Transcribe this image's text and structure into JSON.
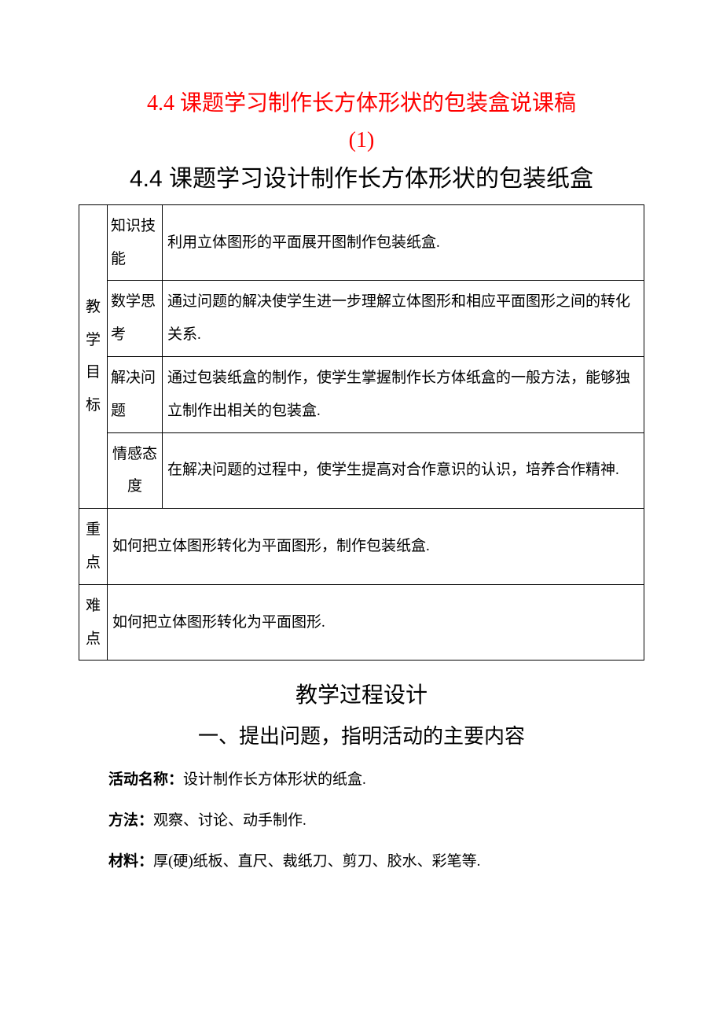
{
  "title_red_line1": "4.4 课题学习制作长方体形状的包装盒说课稿",
  "title_red_line2": "(1)",
  "subtitle": "4.4 课题学习设计制作长方体形状的包装纸盒",
  "table": {
    "goal_header": "教学目标",
    "rows": [
      {
        "label": "知识技能",
        "content": "利用立体图形的平面展开图制作包装纸盒."
      },
      {
        "label": "数学思考",
        "content": "通过问题的解决使学生进一步理解立体图形和相应平面图形之间的转化关系."
      },
      {
        "label": "解决问题",
        "content": "通过包装纸盒的制作，使学生掌握制作长方体纸盒的一般方法，能够独立制作出相关的包装盒."
      },
      {
        "label": "情感态度",
        "content": "在解决问题的过程中，使学生提高对合作意识的认识，培养合作精神."
      }
    ],
    "keypoint_label": "重点",
    "keypoint_content": "如何把立体图形转化为平面图形，制作包装纸盒.",
    "difficulty_label": "难点",
    "difficulty_content": "如何把立体图形转化为平面图形."
  },
  "process_title": "教学过程设计",
  "step1_title": "一、提出问题，指明活动的主要内容",
  "lines": [
    {
      "bold": "活动名称：",
      "text": "设计制作长方体形状的纸盒."
    },
    {
      "bold": "方法：",
      "text": "观察、讨论、动手制作."
    },
    {
      "bold": "材料：",
      "text": "厚(硬)纸板、直尺、裁纸刀、剪刀、胶水、彩笔等."
    }
  ],
  "colors": {
    "title_red": "#ff0000",
    "text": "#000000",
    "border": "#000000",
    "background": "#ffffff"
  },
  "fontsize": {
    "title_red": 28,
    "subtitle": 30,
    "table": 19,
    "section_head": 28,
    "section_sub": 26,
    "body": 19
  }
}
